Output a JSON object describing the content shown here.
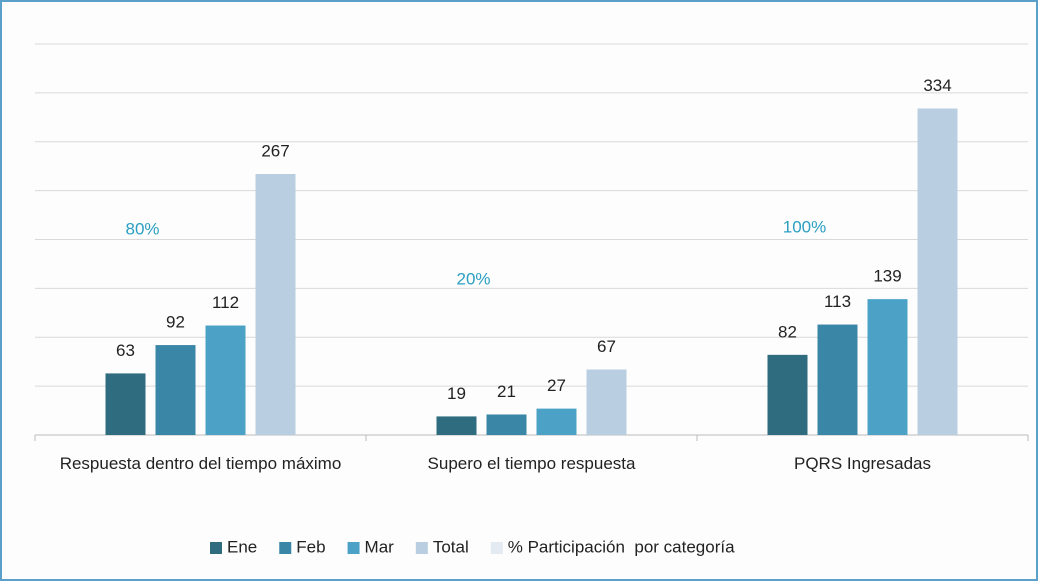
{
  "chart_data": {
    "type": "bar",
    "categories": [
      "Respuesta dentro del tiempo máximo",
      "Supero el tiempo respuesta",
      "PQRS Ingresadas"
    ],
    "series": [
      {
        "name": "Ene",
        "color": "#2f6c7f",
        "values": [
          63,
          19,
          82
        ]
      },
      {
        "name": "Feb",
        "color": "#3a86a6",
        "values": [
          92,
          21,
          113
        ]
      },
      {
        "name": "Mar",
        "color": "#4ba2c6",
        "values": [
          112,
          27,
          139
        ]
      },
      {
        "name": "Total",
        "color": "#b9cee0",
        "values": [
          267,
          67,
          334
        ]
      }
    ],
    "percent_series": {
      "name": "% Participación  por categoría",
      "color": "#e4eaf1",
      "label_color": "#2a9fc2",
      "values": [
        80,
        20,
        100
      ],
      "value_labels": [
        "80%",
        "20%",
        "100%"
      ]
    },
    "ylim": [
      0,
      400
    ],
    "yticks": [
      0,
      50,
      100,
      150,
      200,
      250,
      300,
      350,
      400
    ],
    "grid": true,
    "show_ytick_labels": false,
    "legend": "bottom"
  }
}
